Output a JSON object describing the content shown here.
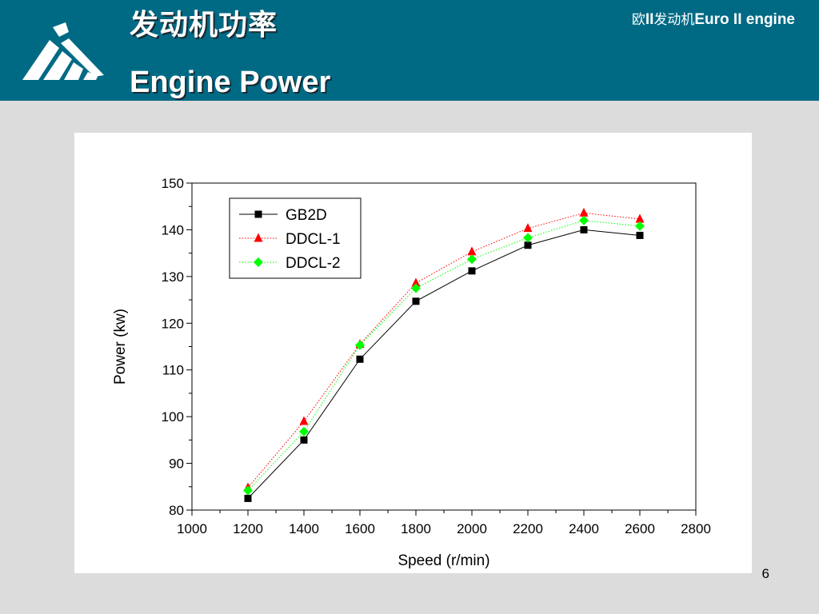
{
  "header": {
    "title_cn": "发动机功率",
    "title_en": "Engine Power",
    "right_cn_1": "欧",
    "right_bold_1": "II",
    "right_cn_2": "发动机",
    "right_bold_2": "Euro II engine"
  },
  "colors": {
    "header_bg": "#006a85",
    "page_bg": "#dcdcdc",
    "gb2d": "#000000",
    "ddcl1": "#ff0000",
    "ddcl2": "#00ff00"
  },
  "chart_data": {
    "type": "line",
    "xlabel": "Speed (r/min)",
    "ylabel": "Power (kw)",
    "xlim": [
      1000,
      2800
    ],
    "ylim": [
      80,
      150
    ],
    "xticks": [
      1000,
      1200,
      1400,
      1600,
      1800,
      2000,
      2200,
      2400,
      2600,
      2800
    ],
    "yticks": [
      80,
      90,
      100,
      110,
      120,
      130,
      140,
      150
    ],
    "legend_position": "top-left",
    "x": [
      1200,
      1400,
      1600,
      1800,
      2000,
      2200,
      2400,
      2600
    ],
    "series": [
      {
        "name": "GB2D",
        "marker": "square",
        "line": "solid",
        "color": "#000000",
        "values": [
          82.5,
          95,
          112.3,
          124.7,
          131.2,
          136.7,
          140,
          138.8
        ]
      },
      {
        "name": "DDCL-1",
        "marker": "triangle",
        "line": "dotted",
        "color": "#ff0000",
        "values": [
          84.8,
          99,
          115.5,
          128.6,
          135.3,
          140.3,
          143.6,
          142.3
        ]
      },
      {
        "name": "DDCL-2",
        "marker": "diamond",
        "line": "dotted",
        "color": "#00ff00",
        "values": [
          84.2,
          96.8,
          115.3,
          127.5,
          133.7,
          138.3,
          142,
          140.8
        ]
      }
    ]
  },
  "page_number": "6"
}
